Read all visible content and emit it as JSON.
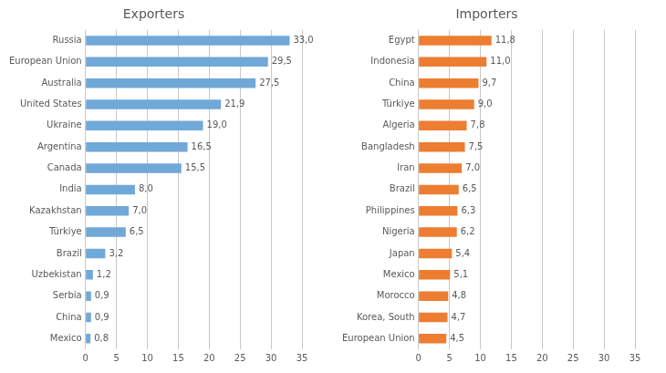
{
  "chart_data": [
    {
      "type": "bar",
      "orientation": "horizontal",
      "title": "Exporters",
      "categories": [
        "Russia",
        "European Union",
        "Australia",
        "United States",
        "Ukraine",
        "Argentina",
        "Canada",
        "India",
        "Kazakhstan",
        "Türkiye",
        "Brazil",
        "Uzbekistan",
        "Serbia",
        "China",
        "Mexico"
      ],
      "values": [
        33.0,
        29.5,
        27.5,
        21.9,
        19.0,
        16.5,
        15.5,
        8.0,
        7.0,
        6.5,
        3.2,
        1.2,
        0.9,
        0.9,
        0.8
      ],
      "value_labels": [
        "33,0",
        "29,5",
        "27,5",
        "21,9",
        "19,0",
        "16,5",
        "15,5",
        "8,0",
        "7,0",
        "6,5",
        "3,2",
        "1,2",
        "0,9",
        "0,9",
        "0,8"
      ],
      "color": "#70A8D8",
      "xlim": [
        0,
        35
      ],
      "xticks": [
        0,
        5,
        10,
        15,
        20,
        25,
        30,
        35
      ],
      "grid": true,
      "data_labels": true
    },
    {
      "type": "bar",
      "orientation": "horizontal",
      "title": "Importers",
      "categories": [
        "Egypt",
        "Indonesia",
        "China",
        "Türkiye",
        "Algeria",
        "Bangladesh",
        "Iran",
        "Brazil",
        "Philippines",
        "Nigeria",
        "Japan",
        "Mexico",
        "Morocco",
        "Korea, South",
        "European Union"
      ],
      "values": [
        11.8,
        11.0,
        9.7,
        9.0,
        7.8,
        7.5,
        7.0,
        6.5,
        6.3,
        6.2,
        5.4,
        5.1,
        4.8,
        4.7,
        4.5
      ],
      "value_labels": [
        "11,8",
        "11,0",
        "9,7",
        "9,0",
        "7,8",
        "7,5",
        "7,0",
        "6,5",
        "6,3",
        "6,2",
        "5,4",
        "5,1",
        "4,8",
        "4,7",
        "4,5"
      ],
      "color": "#ED7D31",
      "xlim": [
        0,
        35
      ],
      "xticks": [
        0,
        5,
        10,
        15,
        20,
        25,
        30,
        35
      ],
      "grid": true,
      "data_labels": true
    }
  ]
}
